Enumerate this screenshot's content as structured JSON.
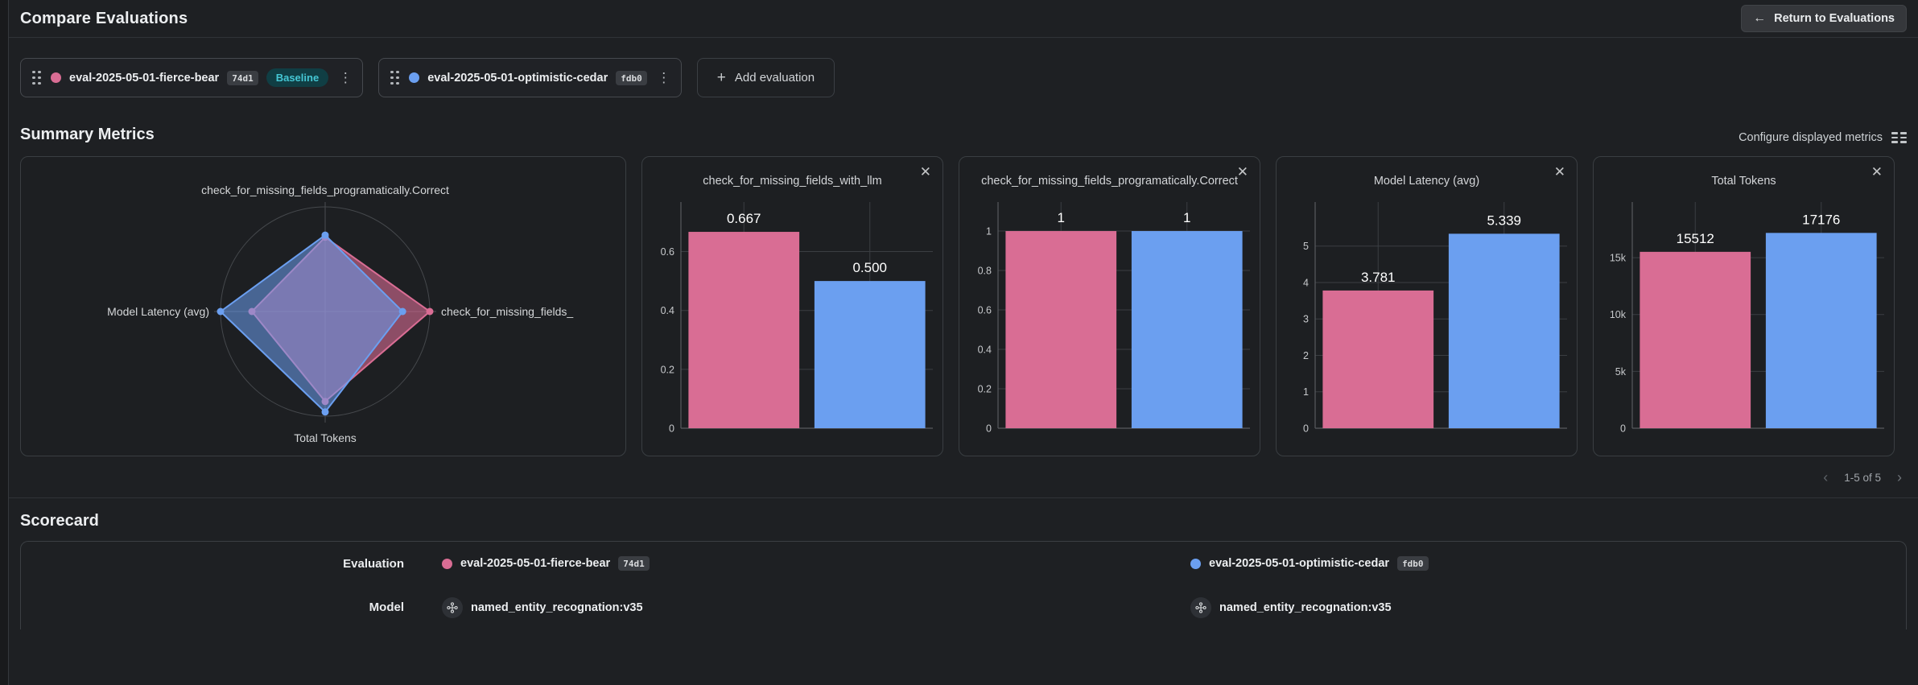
{
  "glyphs": {
    "back_arrow": "←",
    "plus": "+",
    "kebab": "⋮",
    "close": "✕",
    "chev_left": "‹",
    "chev_right": "›"
  },
  "colors": {
    "pink": "#d96d94",
    "blue": "#6b9ff0",
    "baseline_text": "#45c7d4",
    "baseline_bg": "#103e44"
  },
  "header": {
    "title": "Compare Evaluations",
    "return_label": "Return to Evaluations"
  },
  "evaluations": [
    {
      "name": "eval-2025-05-01-fierce-bear",
      "hash": "74d1",
      "badge": "Baseline",
      "color": "#d96d94"
    },
    {
      "name": "eval-2025-05-01-optimistic-cedar",
      "hash": "fdb0",
      "color": "#6b9ff0"
    }
  ],
  "add_evaluation": {
    "label": "Add evaluation"
  },
  "summary": {
    "title": "Summary Metrics",
    "configure_label": "Configure displayed metrics",
    "pagination": {
      "label": "1-5 of 5"
    }
  },
  "chart_data": [
    {
      "type": "radar",
      "axes": [
        "check_for_missing_fields_programatically.Correct",
        "check_for_missing_fields_",
        "Total Tokens",
        "Model Latency (avg)"
      ],
      "series": [
        {
          "name": "eval-2025-05-01-fierce-bear",
          "values": [
            1,
            0.667,
            15512,
            3.781
          ],
          "r_norm": [
            0.71,
            1.0,
            0.86,
            0.7
          ]
        },
        {
          "name": "eval-2025-05-01-optimistic-cedar",
          "values": [
            1,
            0.5,
            17176,
            5.339
          ],
          "r_norm": [
            0.73,
            0.74,
            0.96,
            1.0
          ]
        }
      ],
      "grid": "circle",
      "legend_position": "none"
    },
    {
      "type": "bar",
      "title": "check_for_missing_fields_with_llm",
      "categories": [
        "eval-2025-05-01-fierce-bear",
        "eval-2025-05-01-optimistic-cedar"
      ],
      "values": [
        0.667,
        0.5
      ],
      "labels": [
        "0.667",
        "0.500"
      ],
      "ymax": 0.73,
      "yticks": [
        {
          "v": 0,
          "l": "0"
        },
        {
          "v": 0.2,
          "l": "0.2"
        },
        {
          "v": 0.4,
          "l": "0.4"
        },
        {
          "v": 0.6,
          "l": "0.6"
        }
      ]
    },
    {
      "type": "bar",
      "title": "check_for_missing_fields_programatically.Correct",
      "categories": [
        "eval-2025-05-01-fierce-bear",
        "eval-2025-05-01-optimistic-cedar"
      ],
      "values": [
        1,
        1
      ],
      "labels": [
        "1",
        "1"
      ],
      "ymax": 1.09,
      "yticks": [
        {
          "v": 0,
          "l": "0"
        },
        {
          "v": 0.2,
          "l": "0.2"
        },
        {
          "v": 0.4,
          "l": "0.4"
        },
        {
          "v": 0.6,
          "l": "0.6"
        },
        {
          "v": 0.8,
          "l": "0.8"
        },
        {
          "v": 1,
          "l": "1"
        }
      ]
    },
    {
      "type": "bar",
      "title": "Model Latency (avg)",
      "categories": [
        "eval-2025-05-01-fierce-bear",
        "eval-2025-05-01-optimistic-cedar"
      ],
      "values": [
        3.781,
        5.339
      ],
      "labels": [
        "3.781",
        "5.339"
      ],
      "ymax": 5.9,
      "yticks": [
        {
          "v": 0,
          "l": "0"
        },
        {
          "v": 1,
          "l": "1"
        },
        {
          "v": 2,
          "l": "2"
        },
        {
          "v": 3,
          "l": "3"
        },
        {
          "v": 4,
          "l": "4"
        },
        {
          "v": 5,
          "l": "5"
        }
      ]
    },
    {
      "type": "bar",
      "title": "Total Tokens",
      "categories": [
        "eval-2025-05-01-fierce-bear",
        "eval-2025-05-01-optimistic-cedar"
      ],
      "values": [
        15512,
        17176
      ],
      "labels": [
        "15512",
        "17176"
      ],
      "ymax": 18900,
      "yticks": [
        {
          "v": 0,
          "l": "0"
        },
        {
          "v": 5000,
          "l": "5k"
        },
        {
          "v": 10000,
          "l": "10k"
        },
        {
          "v": 15000,
          "l": "15k"
        }
      ]
    }
  ],
  "scorecard": {
    "title": "Scorecard",
    "row_labels": {
      "evaluation": "Evaluation",
      "model": "Model"
    },
    "models": [
      "named_entity_recognation:v35",
      "named_entity_recognation:v35"
    ]
  }
}
